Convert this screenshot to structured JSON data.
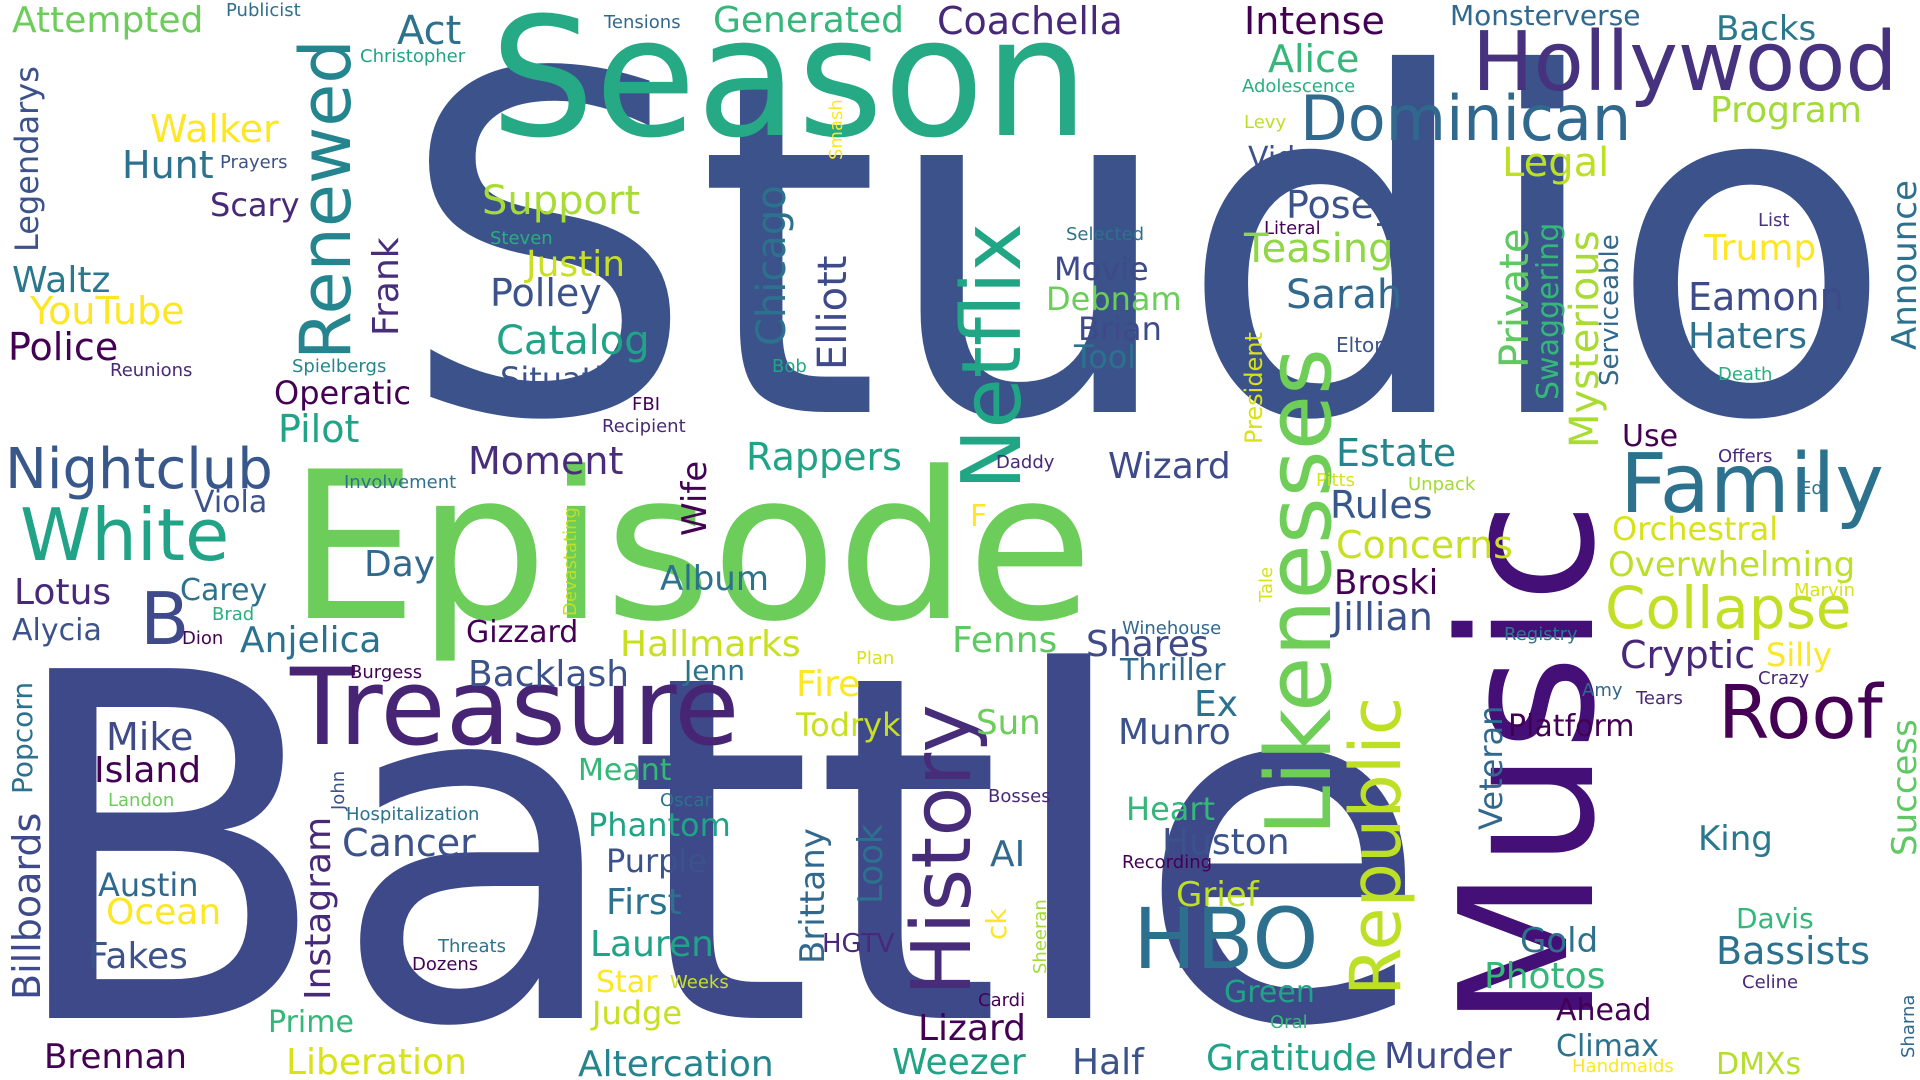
{
  "words": [
    {
      "text": "Studio",
      "color": "#3b528b"
    },
    {
      "text": "Battle",
      "color": "#3e4989"
    },
    {
      "text": "Season",
      "color": "#26a985"
    },
    {
      "text": "Episode",
      "color": "#6ccd5a"
    },
    {
      "text": "Music",
      "color": "#440f76"
    },
    {
      "text": "Hollywood",
      "color": "#46327e"
    },
    {
      "text": "Treasure",
      "color": "#482475"
    },
    {
      "text": "Renewed",
      "color": "#25858e"
    },
    {
      "text": "Netflix",
      "color": "#21a685"
    },
    {
      "text": "Likenesses",
      "color": "#6ece58"
    },
    {
      "text": "History",
      "color": "#472c7a"
    },
    {
      "text": "Republic",
      "color": "#bddf26"
    },
    {
      "text": "Family",
      "color": "#2c728e"
    },
    {
      "text": "Dominican",
      "color": "#31688e"
    },
    {
      "text": "HBO",
      "color": "#2d708e"
    },
    {
      "text": "White",
      "color": "#20a386"
    },
    {
      "text": "Nightclub",
      "color": "#38588c"
    },
    {
      "text": "Collapse",
      "color": "#c2df23"
    },
    {
      "text": "Roof",
      "color": "#440154"
    },
    {
      "text": "B",
      "color": "#3e4a89"
    },
    {
      "text": "Act",
      "color": "#2c728e"
    },
    {
      "text": "Coachella",
      "color": "#482878"
    },
    {
      "text": "Generated",
      "color": "#35b779"
    },
    {
      "text": "Intense",
      "color": "#440154"
    },
    {
      "text": "Alice",
      "color": "#35b779"
    },
    {
      "text": "Monsterverse",
      "color": "#31688e"
    },
    {
      "text": "Backs",
      "color": "#2a788e"
    },
    {
      "text": "Program",
      "color": "#a2da37"
    },
    {
      "text": "Attempted",
      "color": "#6ccd5a"
    },
    {
      "text": "Publicist",
      "color": "#2e6f8e"
    },
    {
      "text": "Tensions",
      "color": "#31688e"
    },
    {
      "text": "Christopher",
      "color": "#20a386"
    },
    {
      "text": "Adolescence",
      "color": "#29af7f"
    },
    {
      "text": "Legendarys",
      "color": "#3b528b"
    },
    {
      "text": "Walker",
      "color": "#fde725"
    },
    {
      "text": "Hunt",
      "color": "#2c728e"
    },
    {
      "text": "Prayers",
      "color": "#3b528b"
    },
    {
      "text": "Smash",
      "color": "#fde725"
    },
    {
      "text": "Levy",
      "color": "#bddf26"
    },
    {
      "text": "Video",
      "color": "#3b528b"
    },
    {
      "text": "Legal",
      "color": "#bddf26"
    },
    {
      "text": "Announce",
      "color": "#2c728e"
    },
    {
      "text": "Scary",
      "color": "#482878"
    },
    {
      "text": "Support",
      "color": "#a8db34"
    },
    {
      "text": "Chicago",
      "color": "#2c728e"
    },
    {
      "text": "Elliott",
      "color": "#3e4a89"
    },
    {
      "text": "Posey",
      "color": "#3b528b"
    },
    {
      "text": "Literal",
      "color": "#440154"
    },
    {
      "text": "Swaggering",
      "color": "#35b779"
    },
    {
      "text": "Serviceable",
      "color": "#31688e"
    },
    {
      "text": "List",
      "color": "#46327e"
    },
    {
      "text": "Trump",
      "color": "#fde725"
    },
    {
      "text": "Steven",
      "color": "#29af7f"
    },
    {
      "text": "Selected",
      "color": "#2c728e"
    },
    {
      "text": "Teasing",
      "color": "#8fd744"
    },
    {
      "text": "Private",
      "color": "#5ec962"
    },
    {
      "text": "Mysterious",
      "color": "#a8db34"
    },
    {
      "text": "Waltz",
      "color": "#2a788e"
    },
    {
      "text": "Justin",
      "color": "#c8e020"
    },
    {
      "text": "Movie",
      "color": "#3e4a89"
    },
    {
      "text": "Sarah",
      "color": "#31688e"
    },
    {
      "text": "Eamonn",
      "color": "#3e4a89"
    },
    {
      "text": "Frank",
      "color": "#472d7b"
    },
    {
      "text": "Polley",
      "color": "#3b528b"
    },
    {
      "text": "Debnam",
      "color": "#6ccd5a"
    },
    {
      "text": "Haters",
      "color": "#2c728e"
    },
    {
      "text": "YouTube",
      "color": "#fde725"
    },
    {
      "text": "Brian",
      "color": "#3e4a89"
    },
    {
      "text": "Tool",
      "color": "#2c728e"
    },
    {
      "text": "Elton",
      "color": "#3b528b"
    },
    {
      "text": "Police",
      "color": "#440154"
    },
    {
      "text": "Catalog",
      "color": "#20a386"
    },
    {
      "text": "President",
      "color": "#d8e219"
    },
    {
      "text": "Reunions",
      "color": "#482878"
    },
    {
      "text": "Spielbergs",
      "color": "#25858e"
    },
    {
      "text": "Bob",
      "color": "#21a685"
    },
    {
      "text": "Death",
      "color": "#29af7f"
    },
    {
      "text": "Situation",
      "color": "#3b528b"
    },
    {
      "text": "Operatic",
      "color": "#440154"
    },
    {
      "text": "FBI",
      "color": "#440154"
    },
    {
      "text": "Recipient",
      "color": "#482878"
    },
    {
      "text": "Pilot",
      "color": "#20a386"
    },
    {
      "text": "Use",
      "color": "#440154"
    },
    {
      "text": "Offers",
      "color": "#482878"
    },
    {
      "text": "Daddy",
      "color": "#482878"
    },
    {
      "text": "Rappers",
      "color": "#20a386"
    },
    {
      "text": "Estate",
      "color": "#25858e"
    },
    {
      "text": "Moment",
      "color": "#472d7b"
    },
    {
      "text": "Wizard",
      "color": "#3e4a89"
    },
    {
      "text": "Involvement",
      "color": "#2c728e"
    },
    {
      "text": "Pitts",
      "color": "#d8e219"
    },
    {
      "text": "Unpack",
      "color": "#a2da37"
    },
    {
      "text": "Ed",
      "color": "#2c728e"
    },
    {
      "text": "Viola",
      "color": "#3b528b"
    },
    {
      "text": "Wife",
      "color": "#440154"
    },
    {
      "text": "Devastating",
      "color": "#bddf26"
    },
    {
      "text": "Rules",
      "color": "#38588c"
    },
    {
      "text": "Orchestral",
      "color": "#d8e219"
    },
    {
      "text": "F",
      "color": "#fde725"
    },
    {
      "text": "Concerns",
      "color": "#c8e020"
    },
    {
      "text": "Day",
      "color": "#31688e"
    },
    {
      "text": "Overwhelming",
      "color": "#bddf26"
    },
    {
      "text": "Lotus",
      "color": "#482878"
    },
    {
      "text": "Carey",
      "color": "#2c728e"
    },
    {
      "text": "Broski",
      "color": "#440154"
    },
    {
      "text": "Album",
      "color": "#2c728e"
    },
    {
      "text": "Tale",
      "color": "#d8e219"
    },
    {
      "text": "Marvin",
      "color": "#d8e219"
    },
    {
      "text": "Brad",
      "color": "#29af7f"
    },
    {
      "text": "Jillian",
      "color": "#3b528b"
    },
    {
      "text": "Alycia",
      "color": "#3b528b"
    },
    {
      "text": "Dion",
      "color": "#440154"
    },
    {
      "text": "Winehouse",
      "color": "#31688e"
    },
    {
      "text": "Registry",
      "color": "#2a788e"
    },
    {
      "text": "Anjelica",
      "color": "#2c728e"
    },
    {
      "text": "Gizzard",
      "color": "#440154"
    },
    {
      "text": "Hallmarks",
      "color": "#c8e020"
    },
    {
      "text": "Fenns",
      "color": "#5ec962"
    },
    {
      "text": "Shares",
      "color": "#3e4a89"
    },
    {
      "text": "Silly",
      "color": "#fde725"
    },
    {
      "text": "Cryptic",
      "color": "#482878"
    },
    {
      "text": "Plan",
      "color": "#d8e219"
    },
    {
      "text": "Thriller",
      "color": "#31688e"
    },
    {
      "text": "Burgess",
      "color": "#440154"
    },
    {
      "text": "Backlash",
      "color": "#3b528b"
    },
    {
      "text": "Jenn",
      "color": "#2c728e"
    },
    {
      "text": "Crazy",
      "color": "#482878"
    },
    {
      "text": "Fire",
      "color": "#fde725"
    },
    {
      "text": "Ex",
      "color": "#2c728e"
    },
    {
      "text": "Amy",
      "color": "#31688e"
    },
    {
      "text": "Tears",
      "color": "#482878"
    },
    {
      "text": "Popcorn",
      "color": "#2c728e"
    },
    {
      "text": "Platform",
      "color": "#440154"
    },
    {
      "text": "Todryk",
      "color": "#c8e020"
    },
    {
      "text": "Sun",
      "color": "#6ccd5a"
    },
    {
      "text": "Munro",
      "color": "#3b528b"
    },
    {
      "text": "Veteran",
      "color": "#31688e"
    },
    {
      "text": "Mike",
      "color": "#3e4a89"
    },
    {
      "text": "Island",
      "color": "#440154"
    },
    {
      "text": "Meant",
      "color": "#35b779"
    },
    {
      "text": "Success",
      "color": "#5ec962"
    },
    {
      "text": "Billboards",
      "color": "#3e4a89"
    },
    {
      "text": "John",
      "color": "#3b528b"
    },
    {
      "text": "Oscar",
      "color": "#2c728e"
    },
    {
      "text": "Bosses",
      "color": "#482878"
    },
    {
      "text": "Landon",
      "color": "#6ccd5a"
    },
    {
      "text": "Hospitalization",
      "color": "#2c728e"
    },
    {
      "text": "Heart",
      "color": "#35b779"
    },
    {
      "text": "Phantom",
      "color": "#20a386"
    },
    {
      "text": "Brittany",
      "color": "#31688e"
    },
    {
      "text": "Look",
      "color": "#2c728e"
    },
    {
      "text": "Cancer",
      "color": "#3b528b"
    },
    {
      "text": "Instagram",
      "color": "#482878"
    },
    {
      "text": "Huston",
      "color": "#3b528b"
    },
    {
      "text": "King",
      "color": "#2a788e"
    },
    {
      "text": "AI",
      "color": "#31688e"
    },
    {
      "text": "Purple",
      "color": "#3b528b"
    },
    {
      "text": "Recording",
      "color": "#440154"
    },
    {
      "text": "Austin",
      "color": "#31688e"
    },
    {
      "text": "Grief",
      "color": "#bddf26"
    },
    {
      "text": "First",
      "color": "#2c728e"
    },
    {
      "text": "ck",
      "color": "#fde725"
    },
    {
      "text": "Sheeran",
      "color": "#a2da37"
    },
    {
      "text": "Ocean",
      "color": "#fde725"
    },
    {
      "text": "Davis",
      "color": "#35b779"
    },
    {
      "text": "HGTV",
      "color": "#482878"
    },
    {
      "text": "Lauren",
      "color": "#20a386"
    },
    {
      "text": "Gold",
      "color": "#2c728e"
    },
    {
      "text": "Fakes",
      "color": "#3b528b"
    },
    {
      "text": "Bassists",
      "color": "#2c728e"
    },
    {
      "text": "Threats",
      "color": "#2c728e"
    },
    {
      "text": "Dozens",
      "color": "#440154"
    },
    {
      "text": "Star",
      "color": "#fde725"
    },
    {
      "text": "Weeks",
      "color": "#c8e020"
    },
    {
      "text": "Photos",
      "color": "#35b779"
    },
    {
      "text": "Celine",
      "color": "#482878"
    },
    {
      "text": "Cardi",
      "color": "#440154"
    },
    {
      "text": "Judge",
      "color": "#c8e020"
    },
    {
      "text": "Green",
      "color": "#20a386"
    },
    {
      "text": "Ahead",
      "color": "#440154"
    },
    {
      "text": "Oral",
      "color": "#35b779"
    },
    {
      "text": "Prime",
      "color": "#35b779"
    },
    {
      "text": "Lizard",
      "color": "#440154"
    },
    {
      "text": "Sharna",
      "color": "#31688e"
    },
    {
      "text": "Climax",
      "color": "#2c728e"
    },
    {
      "text": "Brennan",
      "color": "#440154"
    },
    {
      "text": "Half",
      "color": "#3b528b"
    },
    {
      "text": "Gratitude",
      "color": "#20a386"
    },
    {
      "text": "Murder",
      "color": "#3e4a89"
    },
    {
      "text": "DMXs",
      "color": "#b5de2b"
    },
    {
      "text": "Liberation",
      "color": "#d8e219"
    },
    {
      "text": "Altercation",
      "color": "#25858e"
    },
    {
      "text": "Weezer",
      "color": "#20a386"
    },
    {
      "text": "Handmaids",
      "color": "#fde725"
    }
  ]
}
